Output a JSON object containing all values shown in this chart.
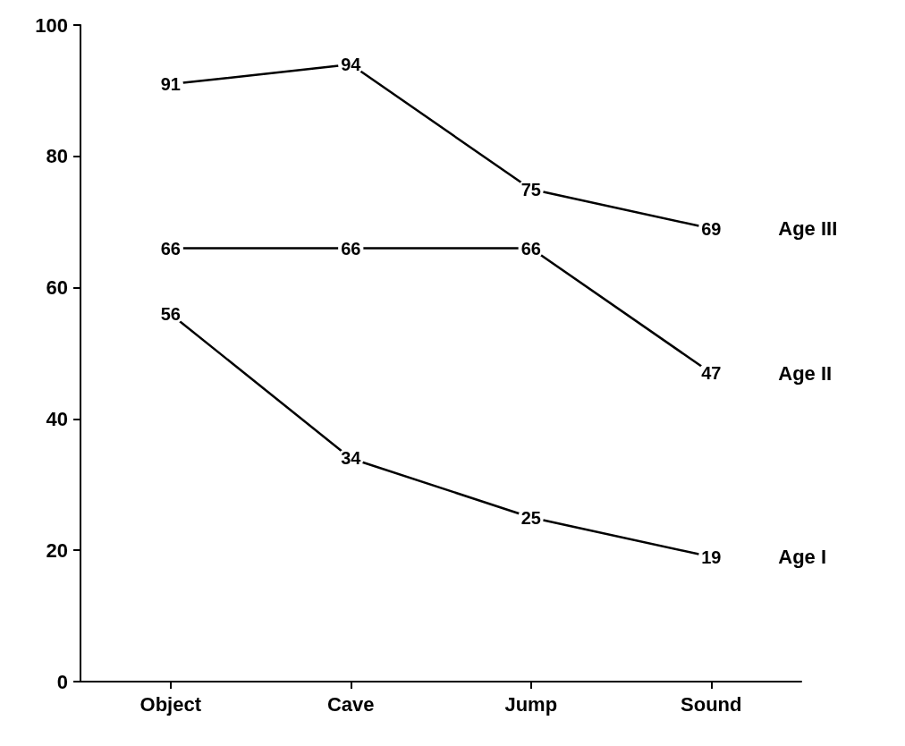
{
  "chart_data": {
    "type": "line",
    "categories": [
      "Object",
      "Cave",
      "Jump",
      "Sound"
    ],
    "series": [
      {
        "name": "Age III",
        "color": "#000000",
        "values": [
          91,
          94,
          75,
          69
        ]
      },
      {
        "name": "Age II",
        "color": "#000000",
        "values": [
          66,
          66,
          66,
          47
        ]
      },
      {
        "name": "Age I",
        "color": "#000000",
        "values": [
          56,
          34,
          25,
          19
        ]
      }
    ],
    "ylim": [
      0,
      100
    ],
    "yticks": [
      0,
      20,
      40,
      60,
      80,
      100
    ],
    "data_labels": true,
    "grid": false,
    "marker": "none",
    "line_style": "solid"
  }
}
